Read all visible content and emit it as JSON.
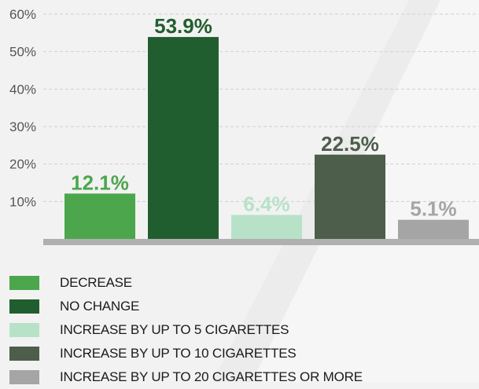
{
  "chart_data": {
    "type": "bar",
    "categories": [
      "DECREASE",
      "NO CHANGE",
      "INCREASE BY UP TO 5 CIGARETTES",
      "INCREASE BY UP TO 10 CIGARETTES",
      "INCREASE BY UP TO 20 CIGARETTES OR MORE"
    ],
    "values": [
      12.1,
      53.9,
      6.4,
      22.5,
      5.1
    ],
    "value_labels": [
      "12.1%",
      "53.9%",
      "6.4%",
      "22.5%",
      "5.1%"
    ],
    "colors": [
      "#4ca64c",
      "#215e2f",
      "#b8e2c8",
      "#4d5e4a",
      "#a5a5a5"
    ],
    "label_colors": [
      "#4ca64c",
      "#215e2f",
      "#b8e2c8",
      "#4d5e4a",
      "#a5a5a5"
    ],
    "yticks": [
      10,
      20,
      30,
      40,
      50,
      60
    ],
    "ytick_labels": [
      "10%",
      "20%",
      "30%",
      "40%",
      "50%",
      "60%"
    ],
    "ylim": [
      0,
      60
    ],
    "grid": true,
    "legend_position": "bottom-left",
    "title": "",
    "xlabel": "",
    "ylabel": ""
  }
}
